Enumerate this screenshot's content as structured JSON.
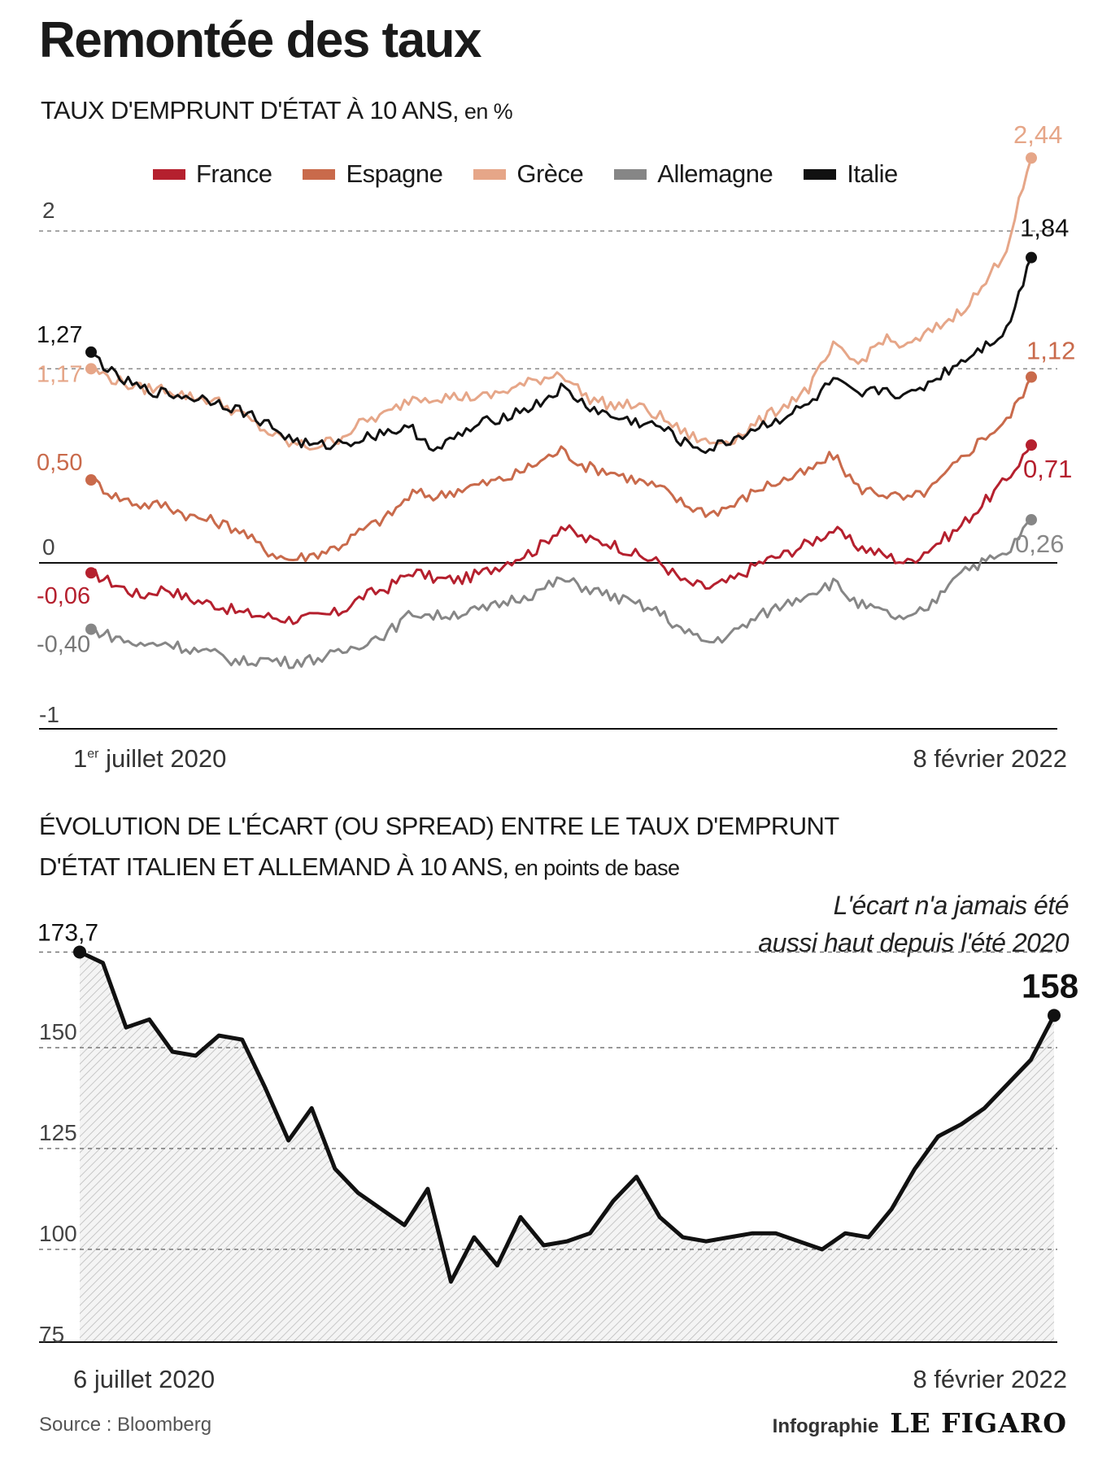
{
  "title": "Remontée des taux",
  "chart1": {
    "subtitle_main": "TAUX D'EMPRUNT D'ÉTAT À 10 ANS,",
    "subtitle_unit": " en %",
    "date_start_prefix": "1",
    "date_start_sup": "er",
    "date_start_rest": " juillet 2020",
    "date_end": "8 février 2022"
  },
  "chart2": {
    "subtitle_line1": "ÉVOLUTION DE L'ÉCART (OU SPREAD) ENTRE LE TAUX D'EMPRUNT",
    "subtitle_line2_main": "D'ÉTAT ITALIEN ET ALLEMAND À 10 ANS,",
    "subtitle_line2_unit": " en points de base",
    "date_start": "6 juillet 2020",
    "date_end": "8 février 2022",
    "annotation_line1": "L'écart n'a jamais été",
    "annotation_line2": "aussi haut depuis l'été 2020"
  },
  "footer": {
    "source": "Source : Bloomberg",
    "credit_label": "Infographie",
    "credit_logo": "LE FIGARO"
  },
  "chart_data": [
    {
      "type": "line",
      "x_start": "1er juillet 2020",
      "x_end": "8 février 2022",
      "ylim": [
        -1,
        2.5
      ],
      "yticks": [
        "2",
        "0",
        "-1"
      ],
      "grid": "dashed at 2 and 1.17",
      "legend_position": "top",
      "series": [
        {
          "name": "France",
          "color": "#b5202e",
          "start_label": "-0,06",
          "end_label": "0,71",
          "values": [
            -0.06,
            -0.13,
            -0.2,
            -0.15,
            -0.22,
            -0.25,
            -0.3,
            -0.32,
            -0.34,
            -0.33,
            -0.3,
            -0.2,
            -0.15,
            -0.05,
            -0.1,
            -0.1,
            -0.05,
            0.02,
            0.08,
            0.22,
            0.14,
            0.12,
            0.05,
            0.0,
            -0.12,
            -0.15,
            -0.1,
            0.0,
            0.05,
            0.12,
            0.2,
            0.1,
            0.05,
            0.0,
            0.1,
            0.2,
            0.35,
            0.5,
            0.71
          ]
        },
        {
          "name": "Espagne",
          "color": "#c96a4b",
          "start_label": "0,50",
          "end_label": "1,12",
          "values": [
            0.5,
            0.4,
            0.35,
            0.35,
            0.28,
            0.25,
            0.2,
            0.08,
            0.02,
            0.05,
            0.1,
            0.2,
            0.28,
            0.42,
            0.4,
            0.45,
            0.48,
            0.52,
            0.6,
            0.68,
            0.58,
            0.55,
            0.5,
            0.45,
            0.35,
            0.3,
            0.35,
            0.45,
            0.5,
            0.55,
            0.65,
            0.45,
            0.42,
            0.38,
            0.45,
            0.6,
            0.75,
            0.85,
            1.12
          ]
        },
        {
          "name": "Grèce",
          "color": "#e6a688",
          "start_label": "1,17",
          "end_label": "2,44",
          "values": [
            1.17,
            1.1,
            1.05,
            1.05,
            1.0,
            0.98,
            0.9,
            0.8,
            0.72,
            0.7,
            0.75,
            0.85,
            0.9,
            1.0,
            1.0,
            1.0,
            1.0,
            1.05,
            1.1,
            1.15,
            1.0,
            0.95,
            0.95,
            0.88,
            0.78,
            0.72,
            0.75,
            0.85,
            0.95,
            1.05,
            1.3,
            1.2,
            1.35,
            1.3,
            1.4,
            1.5,
            1.65,
            1.9,
            2.44
          ]
        },
        {
          "name": "Allemagne",
          "color": "#868686",
          "start_label": "-0,40",
          "end_label": "0,26",
          "values": [
            -0.4,
            -0.45,
            -0.5,
            -0.48,
            -0.52,
            -0.55,
            -0.6,
            -0.58,
            -0.6,
            -0.58,
            -0.55,
            -0.48,
            -0.42,
            -0.3,
            -0.32,
            -0.3,
            -0.28,
            -0.22,
            -0.18,
            -0.1,
            -0.15,
            -0.2,
            -0.25,
            -0.3,
            -0.42,
            -0.48,
            -0.42,
            -0.32,
            -0.25,
            -0.18,
            -0.12,
            -0.25,
            -0.3,
            -0.35,
            -0.25,
            -0.05,
            0.0,
            0.05,
            0.26
          ]
        },
        {
          "name": "Italie",
          "color": "#111111",
          "start_label": "1,27",
          "end_label": "1,84",
          "values": [
            1.27,
            1.12,
            1.05,
            1.02,
            1.0,
            0.98,
            0.92,
            0.85,
            0.75,
            0.7,
            0.72,
            0.75,
            0.8,
            0.8,
            0.68,
            0.78,
            0.85,
            0.9,
            0.95,
            1.05,
            0.95,
            0.88,
            0.85,
            0.82,
            0.72,
            0.68,
            0.75,
            0.82,
            0.88,
            0.95,
            1.1,
            1.0,
            1.05,
            1.0,
            1.1,
            1.2,
            1.3,
            1.4,
            1.84
          ]
        }
      ]
    },
    {
      "type": "area",
      "x_start": "6 juillet 2020",
      "x_end": "8 février 2022",
      "ylim": [
        75,
        175
      ],
      "yticks": [
        "150",
        "125",
        "100",
        "75"
      ],
      "grid": "dashed at 150, 125, 100",
      "series": [
        {
          "name": "",
          "color": "#111111",
          "start_label": "173,7",
          "end_label": "158",
          "values": [
            173.7,
            171,
            155,
            157,
            149,
            148,
            153,
            152,
            140,
            127,
            135,
            120,
            114,
            110,
            106,
            115,
            92,
            103,
            96,
            108,
            101,
            102,
            104,
            112,
            118,
            108,
            103,
            102,
            103,
            104,
            104,
            102,
            100,
            104,
            103,
            110,
            120,
            128,
            131,
            135,
            141,
            147,
            158
          ]
        }
      ]
    }
  ]
}
